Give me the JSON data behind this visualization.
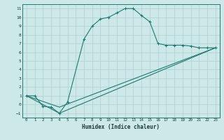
{
  "xlabel": "Humidex (Indice chaleur)",
  "line_color": "#1e7a6e",
  "bg_color": "#cde8e8",
  "grid_color": "#aed0d0",
  "xlim": [
    -0.5,
    23.5
  ],
  "ylim": [
    -1.5,
    11.5
  ],
  "xticks": [
    0,
    1,
    2,
    3,
    4,
    5,
    6,
    7,
    8,
    9,
    10,
    11,
    12,
    13,
    14,
    15,
    16,
    17,
    18,
    19,
    20,
    21,
    22,
    23
  ],
  "yticks": [
    -1,
    0,
    1,
    2,
    3,
    4,
    5,
    6,
    7,
    8,
    9,
    10,
    11
  ],
  "curve1_x": [
    0,
    1,
    2,
    3,
    4,
    5,
    7,
    8,
    9,
    10,
    11,
    12,
    13,
    14,
    15,
    16,
    17,
    18,
    19,
    20,
    21,
    22,
    23
  ],
  "curve1_y": [
    1,
    1,
    -0.2,
    -0.3,
    -1,
    0.3,
    7.5,
    9,
    9.8,
    10,
    10.5,
    11,
    11,
    10.2,
    9.5,
    7,
    6.8,
    6.8,
    6.8,
    6.7,
    6.5,
    6.5,
    6.5
  ],
  "curve2_x": [
    0,
    4,
    23
  ],
  "curve2_y": [
    1,
    -1,
    6.5
  ],
  "curve3_x": [
    0,
    4,
    23
  ],
  "curve3_y": [
    1,
    -0.3,
    6.5
  ]
}
